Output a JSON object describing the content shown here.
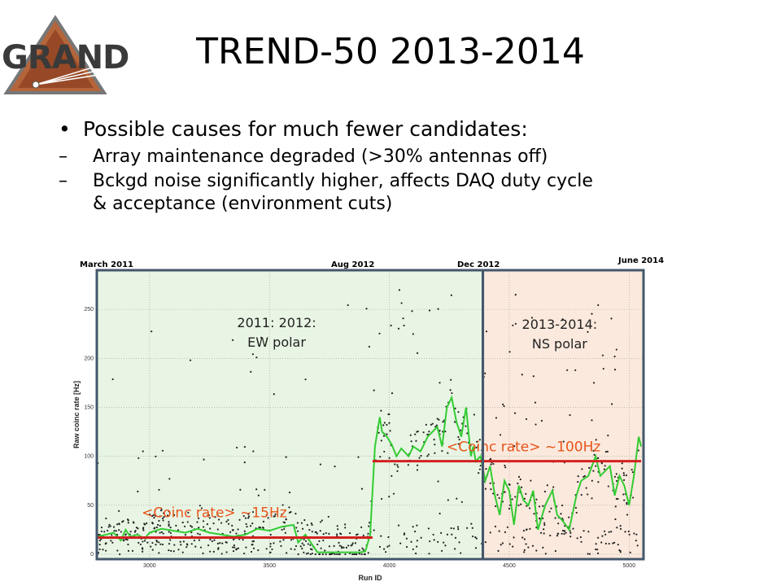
{
  "slide": {
    "title": "TREND-50 2013-2014",
    "logo_text": "GRAND",
    "bullets": [
      {
        "text": "Possible causes for much fewer candidates:",
        "sub": [
          {
            "line1": "Array maintenance degraded (>30% antennas off)",
            "line2": ""
          },
          {
            "line1": "Bckgd noise significantly higher, affects DAQ duty cycle",
            "line2": "& acceptance (environment cuts)"
          }
        ]
      }
    ],
    "bullet_glyph": "•",
    "dash_glyph": "–"
  },
  "chart_data": {
    "type": "scatter",
    "xlabel": "Run ID",
    "ylabel": "Raw coinc rate [Hz]",
    "xlim": [
      2780,
      5060
    ],
    "ylim": [
      -5,
      290
    ],
    "xticks": [
      3000,
      3500,
      4000,
      4500,
      5000
    ],
    "yticks": [
      0,
      50,
      100,
      150,
      200,
      250
    ],
    "grid": true,
    "date_labels": [
      "March 2011",
      "Aug 2012",
      "Dec 2012",
      "June 2014"
    ],
    "regions": [
      {
        "name": "green-region",
        "x_start": 2780,
        "x_end": 4390,
        "color": "#e8f5e4"
      },
      {
        "name": "peach-region",
        "x_start": 4390,
        "x_end": 5060,
        "color": "#fbe9dd"
      }
    ],
    "region_labels": [
      {
        "line1": "2011: 2012:",
        "line2": "EW polar",
        "x": 3530,
        "y": 232
      },
      {
        "line1": "2013-2014:",
        "line2": "NS polar",
        "x": 4710,
        "y": 230
      }
    ],
    "mean_lines": [
      {
        "label": "<Coinc rate> ~15Hz",
        "y": 17,
        "x_start": 2780,
        "x_end": 3930,
        "label_x": 3270,
        "label_y": 38
      },
      {
        "label": "<Coinc rate> ~100Hz",
        "y": 95,
        "x_start": 3930,
        "x_end": 5050,
        "label_x": 4560,
        "label_y": 105
      }
    ],
    "series": [
      {
        "name": "",
        "color": "#33cc33",
        "x": [
          2780,
          2820,
          2850,
          2880,
          2900,
          2920,
          2950,
          2980,
          3000,
          3050,
          3100,
          3150,
          3200,
          3250,
          3300,
          3350,
          3400,
          3450,
          3500,
          3550,
          3600,
          3620,
          3650,
          3700,
          3750,
          3800,
          3850,
          3880,
          3900,
          3920,
          3940,
          3960,
          3970,
          3990,
          4010,
          4030,
          4050,
          4080,
          4100,
          4130,
          4160,
          4200,
          4220,
          4240,
          4260,
          4280,
          4300,
          4320,
          4340,
          4350,
          4360,
          4380,
          4400,
          4420,
          4440,
          4460,
          4480,
          4500,
          4520,
          4540,
          4560,
          4580,
          4600,
          4620,
          4650,
          4680,
          4700,
          4720,
          4750,
          4780,
          4800,
          4830,
          4860,
          4880,
          4900,
          4920,
          4940,
          4960,
          4980,
          5000,
          5020,
          5040,
          5050
        ],
        "y": [
          18,
          20,
          22,
          14,
          25,
          18,
          20,
          16,
          22,
          26,
          24,
          22,
          26,
          22,
          20,
          18,
          20,
          26,
          24,
          28,
          30,
          12,
          20,
          2,
          2,
          2,
          2,
          2,
          3,
          20,
          110,
          140,
          125,
          120,
          112,
          100,
          108,
          100,
          110,
          105,
          120,
          130,
          110,
          150,
          160,
          135,
          120,
          150,
          100,
          110,
          95,
          100,
          75,
          90,
          60,
          40,
          75,
          65,
          30,
          70,
          55,
          50,
          65,
          25,
          50,
          65,
          40,
          35,
          25,
          60,
          75,
          80,
          100,
          80,
          85,
          90,
          60,
          80,
          70,
          50,
          80,
          120,
          110
        ]
      }
    ]
  }
}
